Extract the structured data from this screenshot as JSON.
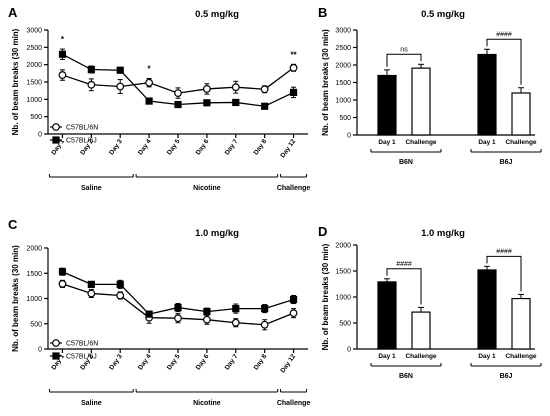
{
  "colors": {
    "ink": "#000000",
    "paper": "#ffffff"
  },
  "chart_data": [
    {
      "panel": "A",
      "type": "line",
      "title": "0.5 mg/kg",
      "ylabel": "Nb. of beam breaks (30 min)",
      "ylim": [
        0,
        3000
      ],
      "yticks": [
        "0",
        "500",
        "1000",
        "1500",
        "2000",
        "2500",
        "3000"
      ],
      "categories": [
        "Day 1",
        "Day 2",
        "Day 3",
        "Day 4",
        "Day 5",
        "Day 6",
        "Day 7",
        "Day 8",
        "Day 12"
      ],
      "groups": [
        "Saline",
        "Nicotine",
        "Challenge"
      ],
      "legend_position": "middle-left",
      "series": [
        {
          "name": "C57BL/6N",
          "marker": "open-circle",
          "values": [
            1700,
            1420,
            1370,
            1480,
            1180,
            1300,
            1350,
            1290,
            1910
          ],
          "errors": [
            150,
            170,
            200,
            120,
            150,
            150,
            170,
            100,
            100
          ]
        },
        {
          "name": "C57BL/6J",
          "marker": "filled-square",
          "values": [
            2300,
            1860,
            1840,
            950,
            850,
            900,
            910,
            800,
            1200
          ],
          "errors": [
            150,
            100,
            50,
            30,
            80,
            60,
            70,
            80,
            150
          ]
        }
      ],
      "annotations": [
        {
          "text": "*",
          "category": "Day 1"
        },
        {
          "text": "*",
          "category": "Day 4"
        },
        {
          "text": "**",
          "category": "Day 12"
        }
      ]
    },
    {
      "panel": "B",
      "type": "bar",
      "title": "0.5 mg/kg",
      "ylabel": "Nb. of beam breaks (30 min)",
      "ylim": [
        0,
        3000
      ],
      "yticks": [
        "0",
        "500",
        "1000",
        "1500",
        "2000",
        "2500",
        "3000"
      ],
      "bar_labels": [
        "Day 1",
        "Challenge",
        "Day 1",
        "Challenge"
      ],
      "groups": [
        "B6N",
        "B6J"
      ],
      "values": [
        1700,
        1910,
        2300,
        1200
      ],
      "errors": [
        160,
        110,
        150,
        150
      ],
      "fills": [
        "black",
        "white",
        "black",
        "white"
      ],
      "comparisons": [
        {
          "group": "B6N",
          "text": "ns"
        },
        {
          "group": "B6J",
          "text": "####"
        }
      ]
    },
    {
      "panel": "C",
      "type": "line",
      "title": "1.0 mg/kg",
      "ylabel": "Nb. of beam breaks (30 min)",
      "ylim": [
        0,
        2000
      ],
      "yticks": [
        "0",
        "500",
        "1000",
        "1500",
        "2000"
      ],
      "categories": [
        "Day 1",
        "Day 2",
        "Day 3",
        "Day 4",
        "Day 5",
        "Day 6",
        "Day 7",
        "Day 8",
        "Day 12"
      ],
      "groups": [
        "Saline",
        "Nicotine",
        "Challenge"
      ],
      "legend_position": "lower-left",
      "series": [
        {
          "name": "C57BL/6N",
          "marker": "open-circle",
          "values": [
            1290,
            1100,
            1060,
            620,
            610,
            580,
            520,
            480,
            710
          ],
          "errors": [
            70,
            80,
            70,
            110,
            90,
            90,
            80,
            100,
            90
          ]
        },
        {
          "name": "C57BL/6J",
          "marker": "filled-square",
          "values": [
            1530,
            1280,
            1280,
            690,
            820,
            740,
            800,
            800,
            980
          ],
          "errors": [
            70,
            50,
            80,
            50,
            80,
            70,
            90,
            80,
            80
          ]
        }
      ]
    },
    {
      "panel": "D",
      "type": "bar",
      "title": "1.0 mg/kg",
      "ylabel": "Nb. of beam breaks (30 min)",
      "ylim": [
        0,
        2000
      ],
      "yticks": [
        "0",
        "500",
        "1000",
        "1500",
        "2000"
      ],
      "bar_labels": [
        "Day 1",
        "Challenge",
        "Day 1",
        "Challenge"
      ],
      "groups": [
        "B6N",
        "B6J"
      ],
      "values": [
        1290,
        710,
        1520,
        970
      ],
      "errors": [
        60,
        90,
        70,
        80
      ],
      "fills": [
        "black",
        "white",
        "black",
        "white"
      ],
      "comparisons": [
        {
          "group": "B6N",
          "text": "####"
        },
        {
          "group": "B6J",
          "text": "####"
        }
      ]
    }
  ]
}
